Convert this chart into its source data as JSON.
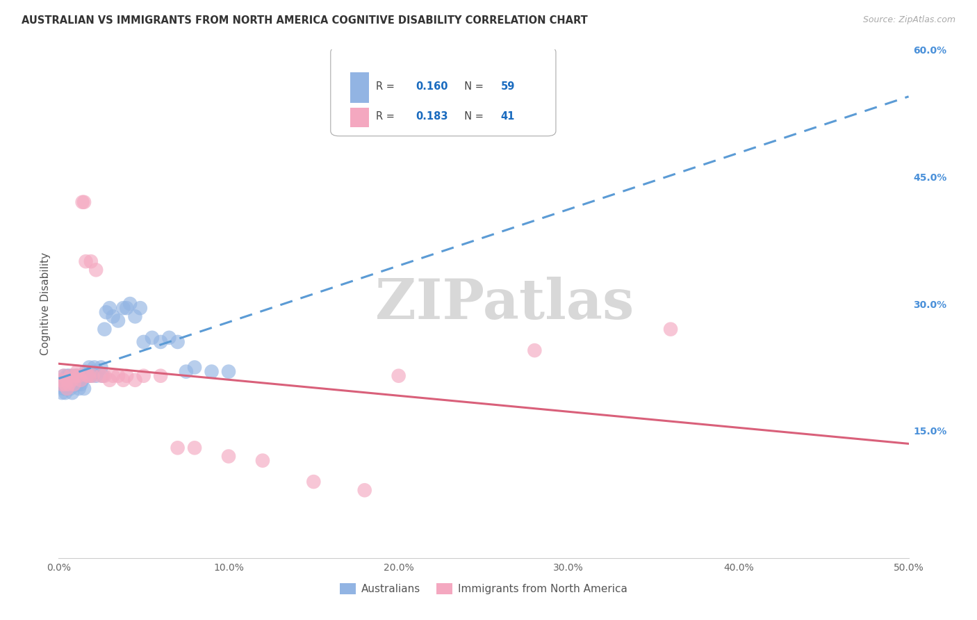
{
  "title": "AUSTRALIAN VS IMMIGRANTS FROM NORTH AMERICA COGNITIVE DISABILITY CORRELATION CHART",
  "source": "Source: ZipAtlas.com",
  "ylabel": "Cognitive Disability",
  "xlim": [
    0.0,
    0.5
  ],
  "ylim": [
    0.0,
    0.6
  ],
  "xticks": [
    0.0,
    0.1,
    0.2,
    0.3,
    0.4,
    0.5
  ],
  "yticks": [
    0.15,
    0.3,
    0.45,
    0.6
  ],
  "ytick_labels": [
    "15.0%",
    "30.0%",
    "45.0%",
    "60.0%"
  ],
  "xtick_labels": [
    "0.0%",
    "10.0%",
    "20.0%",
    "30.0%",
    "40.0%",
    "50.0%"
  ],
  "r_australian": 0.16,
  "n_australian": 59,
  "r_immigrants": 0.183,
  "n_immigrants": 41,
  "color_australian": "#92b4e3",
  "color_immigrants": "#f4a8c0",
  "color_line_australian": "#5b9bd5",
  "color_line_immigrants": "#d9607a",
  "background_color": "#ffffff",
  "grid_color": "#c8c8c8",
  "legend_label_australian": "Australians",
  "legend_label_immigrants": "Immigrants from North America",
  "watermark_text": "ZIPatlas",
  "australians_x": [
    0.001,
    0.002,
    0.002,
    0.003,
    0.003,
    0.004,
    0.004,
    0.005,
    0.005,
    0.005,
    0.006,
    0.006,
    0.007,
    0.007,
    0.008,
    0.008,
    0.008,
    0.009,
    0.009,
    0.01,
    0.01,
    0.011,
    0.011,
    0.012,
    0.012,
    0.013,
    0.013,
    0.014,
    0.015,
    0.015,
    0.016,
    0.017,
    0.018,
    0.019,
    0.02,
    0.021,
    0.022,
    0.023,
    0.025,
    0.026,
    0.027,
    0.028,
    0.03,
    0.032,
    0.035,
    0.038,
    0.04,
    0.042,
    0.045,
    0.048,
    0.05,
    0.055,
    0.06,
    0.065,
    0.07,
    0.075,
    0.08,
    0.09,
    0.1
  ],
  "australians_y": [
    0.205,
    0.21,
    0.195,
    0.215,
    0.2,
    0.205,
    0.195,
    0.21,
    0.2,
    0.215,
    0.205,
    0.215,
    0.2,
    0.21,
    0.205,
    0.215,
    0.195,
    0.21,
    0.205,
    0.21,
    0.215,
    0.205,
    0.215,
    0.21,
    0.2,
    0.215,
    0.205,
    0.21,
    0.215,
    0.2,
    0.22,
    0.215,
    0.225,
    0.215,
    0.22,
    0.225,
    0.215,
    0.22,
    0.225,
    0.215,
    0.27,
    0.29,
    0.295,
    0.285,
    0.28,
    0.295,
    0.295,
    0.3,
    0.285,
    0.295,
    0.255,
    0.26,
    0.255,
    0.26,
    0.255,
    0.22,
    0.225,
    0.22,
    0.22
  ],
  "immigrants_x": [
    0.001,
    0.002,
    0.003,
    0.004,
    0.005,
    0.005,
    0.006,
    0.007,
    0.008,
    0.009,
    0.01,
    0.011,
    0.012,
    0.013,
    0.014,
    0.015,
    0.016,
    0.017,
    0.018,
    0.019,
    0.02,
    0.022,
    0.025,
    0.027,
    0.03,
    0.032,
    0.035,
    0.038,
    0.04,
    0.045,
    0.05,
    0.06,
    0.07,
    0.08,
    0.1,
    0.12,
    0.15,
    0.18,
    0.2,
    0.28,
    0.36
  ],
  "immigrants_y": [
    0.21,
    0.205,
    0.215,
    0.205,
    0.21,
    0.2,
    0.205,
    0.215,
    0.21,
    0.205,
    0.215,
    0.22,
    0.215,
    0.21,
    0.42,
    0.42,
    0.35,
    0.215,
    0.215,
    0.35,
    0.215,
    0.34,
    0.215,
    0.215,
    0.21,
    0.215,
    0.215,
    0.21,
    0.215,
    0.21,
    0.215,
    0.215,
    0.13,
    0.13,
    0.12,
    0.115,
    0.09,
    0.08,
    0.215,
    0.245,
    0.27
  ]
}
